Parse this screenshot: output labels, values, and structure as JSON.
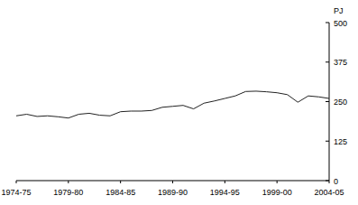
{
  "chart_data": {
    "type": "line",
    "y_label": "PJ",
    "categories": [
      "1974-75",
      null,
      null,
      null,
      null,
      "1979-80",
      null,
      null,
      null,
      null,
      "1984-85",
      null,
      null,
      null,
      null,
      "1989-90",
      null,
      null,
      null,
      null,
      "1994-95",
      null,
      null,
      null,
      null,
      "1999-00",
      null,
      null,
      null,
      null,
      "2004-05"
    ],
    "values": [
      205,
      210,
      203,
      205,
      202,
      198,
      210,
      213,
      207,
      205,
      218,
      220,
      220,
      222,
      232,
      235,
      238,
      227,
      245,
      252,
      260,
      268,
      282,
      283,
      281,
      278,
      272,
      248,
      268,
      265,
      260
    ],
    "color": "#222222",
    "ylim": [
      0,
      500
    ],
    "yticks": [
      0,
      125,
      250,
      375,
      500
    ],
    "grid": false
  }
}
